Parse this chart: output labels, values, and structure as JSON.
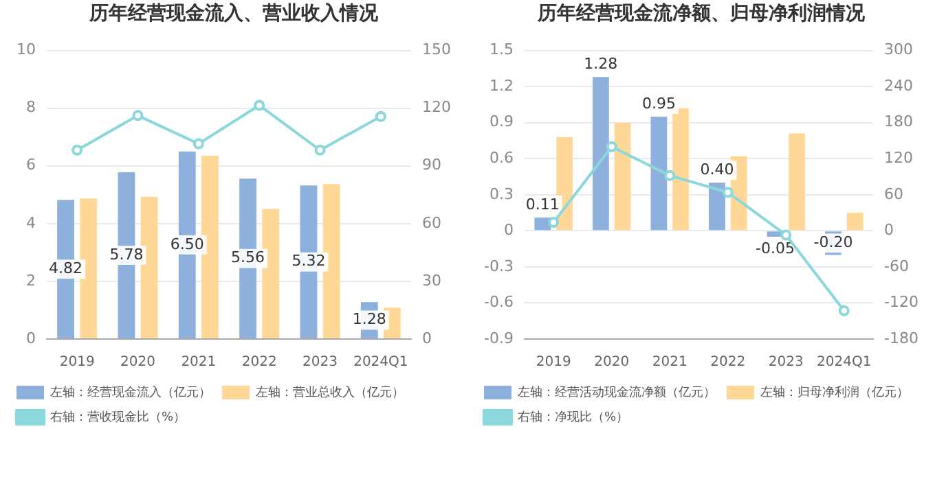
{
  "chart_data": [
    {
      "type": "bar",
      "title": "历年经营现金流入、营业收入情况",
      "categories": [
        "2019",
        "2020",
        "2021",
        "2022",
        "2023",
        "2024Q1"
      ],
      "ylim": [
        0,
        10
      ],
      "yticks": [
        0,
        2,
        4,
        6,
        8,
        10
      ],
      "y2lim": [
        0,
        150
      ],
      "y2ticks": [
        0,
        30,
        60,
        90,
        120,
        150
      ],
      "grid": "y",
      "legend": "bottom",
      "marker": "circle",
      "series": [
        {
          "name": "左轴：经营现金流入（亿元）",
          "color": "#8eb0dc",
          "values": [
            4.82,
            5.78,
            6.5,
            5.56,
            5.32,
            1.28
          ],
          "value_labels": [
            "4.82",
            "5.78",
            "6.50",
            "5.56",
            "5.32",
            "1.28"
          ]
        },
        {
          "name": "左轴：营业总收入（亿元）",
          "color": "#ffd898",
          "values": [
            4.87,
            4.93,
            6.35,
            4.51,
            5.37,
            1.09
          ]
        },
        {
          "name": "右轴：营收现金比（%）",
          "type": "line",
          "axis": "y2",
          "color": "#8bd8dc",
          "values": [
            98.2,
            116.2,
            101.5,
            121.5,
            98.2,
            115.7
          ]
        }
      ]
    },
    {
      "type": "bar",
      "title": "历年经营现金流净额、归母净利润情况",
      "categories": [
        "2019",
        "2020",
        "2021",
        "2022",
        "2023",
        "2024Q1"
      ],
      "ylim": [
        -0.9,
        1.5
      ],
      "yticks": [
        -0.9,
        -0.6,
        -0.3,
        0,
        0.3,
        0.6,
        0.9,
        1.2,
        1.5
      ],
      "y2lim": [
        -180,
        300
      ],
      "y2ticks": [
        -180,
        -120,
        -60,
        0,
        60,
        120,
        180,
        240,
        300
      ],
      "grid": "y",
      "legend": "bottom",
      "marker": "circle",
      "series": [
        {
          "name": "左轴：经营活动现金流净额（亿元）",
          "color": "#8eb0dc",
          "values": [
            0.11,
            1.28,
            0.95,
            0.4,
            -0.05,
            -0.2
          ],
          "value_labels": [
            "0.11",
            "1.28",
            "0.95",
            "0.40",
            "-0.05",
            "-0.20"
          ]
        },
        {
          "name": "左轴：归母净利润（亿元）",
          "color": "#ffd898",
          "values": [
            0.78,
            0.9,
            1.02,
            0.62,
            0.81,
            0.15
          ]
        },
        {
          "name": "右轴：净现比（%）",
          "type": "line",
          "axis": "y2",
          "color": "#8bd8dc",
          "values": [
            14,
            140,
            92,
            64,
            -7,
            -133
          ]
        }
      ]
    }
  ]
}
